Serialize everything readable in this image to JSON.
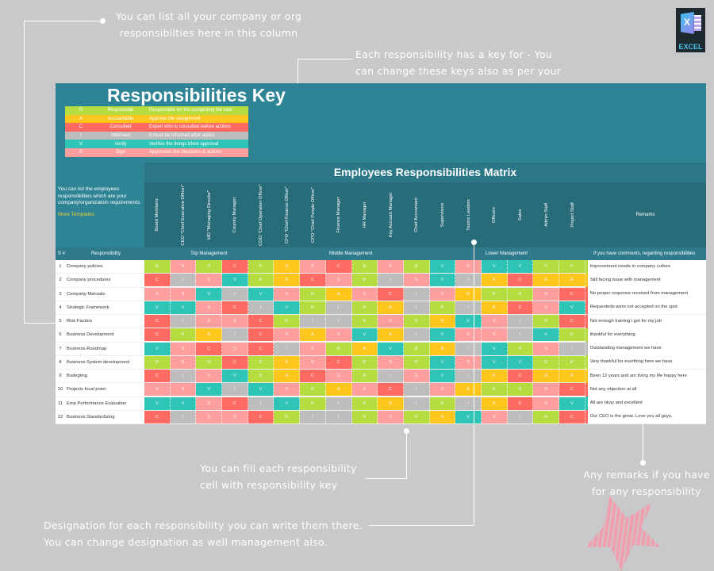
{
  "callouts": {
    "list_column": "You can list all your company or org responsibilties here in this column",
    "keys": "Each responsibility has a key for - You can change these keys also as per your needs",
    "fill_cell": "You can fill each responsibility cell with responsibility key",
    "designation": "Designation for each responsibility you can write them there. You can change designation as well management also.",
    "remarks": "Any remarks if you have for any responsibility"
  },
  "logo": {
    "label": "EXCEL",
    "glyph": "X"
  },
  "key": {
    "title": "Responsibilities Key",
    "items": [
      {
        "code": "R",
        "name": "Responsible",
        "desc": "Responsible for the completing the task",
        "color": "#b5dd3f"
      },
      {
        "code": "A",
        "name": "Accountable",
        "desc": "Approve the assignment",
        "color": "#ffc61e"
      },
      {
        "code": "C",
        "name": "Consulted",
        "desc": "Expert who is consulted before actions",
        "color": "#ff6b63"
      },
      {
        "code": "I",
        "name": "Informed",
        "desc": "It must be informed after action",
        "color": "#bdbdbd"
      },
      {
        "code": "V",
        "name": "Verify",
        "desc": "Verifies the things bfore approval",
        "color": "#2ec4b6"
      },
      {
        "code": "S",
        "name": "Sign",
        "desc": "Approveds the decisions & actions",
        "color": "#ff9e9e"
      }
    ]
  },
  "left_info": {
    "text": "You can list the employees responsibilities which are your company/organizatoin requirements.",
    "link": "More Templates"
  },
  "matrix": {
    "title": "Employees Responsibilities Matrix",
    "roles": [
      "Board Members",
      "CEO \"Chief Executive Officer\"",
      "MD \"Managing Director\"",
      "Country Manager",
      "COO \"Chief Operation Officer\"",
      "CFO \"Chief Finance Officer\"",
      "CPO \"Chief People Officer\"",
      "Finance Manager",
      "HR Manager",
      "Key Account Manager",
      "Chief Accountant",
      "Supervisors",
      "Teams Leaders",
      "Officers",
      "Sales",
      "Admin Staff",
      "Project Staff"
    ],
    "remarks_header": "Remarks",
    "sn_header": "S #",
    "resp_header": "Responsibility",
    "groups": {
      "top": "Top Management",
      "middle": "Middle Management",
      "lower": "Lower Management",
      "remarks": "If you have comments, regarding responsibilities"
    },
    "rows": [
      {
        "n": "1",
        "name": "Company policies",
        "cells": "RSRCRASCRSRVSVVRR",
        "remark": "Improvement needs in company culture"
      },
      {
        "n": "2",
        "name": "Company procedures",
        "cells": "CISVRACSRISVIACAA",
        "remark": "Still facing issue with management"
      },
      {
        "n": "3",
        "name": "Company Manuals",
        "cells": "SSVIVSRASCISARRSC",
        "remark": "No proper response received from management"
      },
      {
        "n": "4",
        "name": "Strategic Framework",
        "cells": "VVSCIVRIRAIRIACSV",
        "remark": "Requesteds were not accepted on the spot"
      },
      {
        "n": "5",
        "name": "Risk Factors",
        "cells": "CISSCRIIRSRAVSIRC",
        "remark": "Not enough training i got for my job"
      },
      {
        "n": "6",
        "name": "Business Development",
        "cells": "CRAICSASVAIVSSIVR",
        "remark": "thankful for everything"
      },
      {
        "n": "7",
        "name": "Business Roadmap",
        "cells": "VSCSCISRAVRAIVRSI",
        "remark": "Outstanding management we have"
      },
      {
        "n": "8",
        "name": "Business System development",
        "cells": "RSRCRASCRSRVSVVRR",
        "remark": "Very thankful for everthing here we have"
      },
      {
        "n": "9",
        "name": "Budegting",
        "cells": "CISVRACSRISVIACAA",
        "remark": "Been 12 years and am living my life happy here"
      },
      {
        "n": "10",
        "name": "Projects focal point",
        "cells": "SSVIVSRASCISARRSC",
        "remark": "Not any objection at all"
      },
      {
        "n": "11",
        "name": "Emp Performance Evaluation",
        "cells": "VVSCIVRIRAIRIACSV",
        "remark": "All are okay and excellent"
      },
      {
        "n": "12",
        "name": "Business Standardizing",
        "cells": "CISSCRIIRSRAVSIRC",
        "remark": "Our CEO is the great. Love you all guys."
      }
    ]
  }
}
